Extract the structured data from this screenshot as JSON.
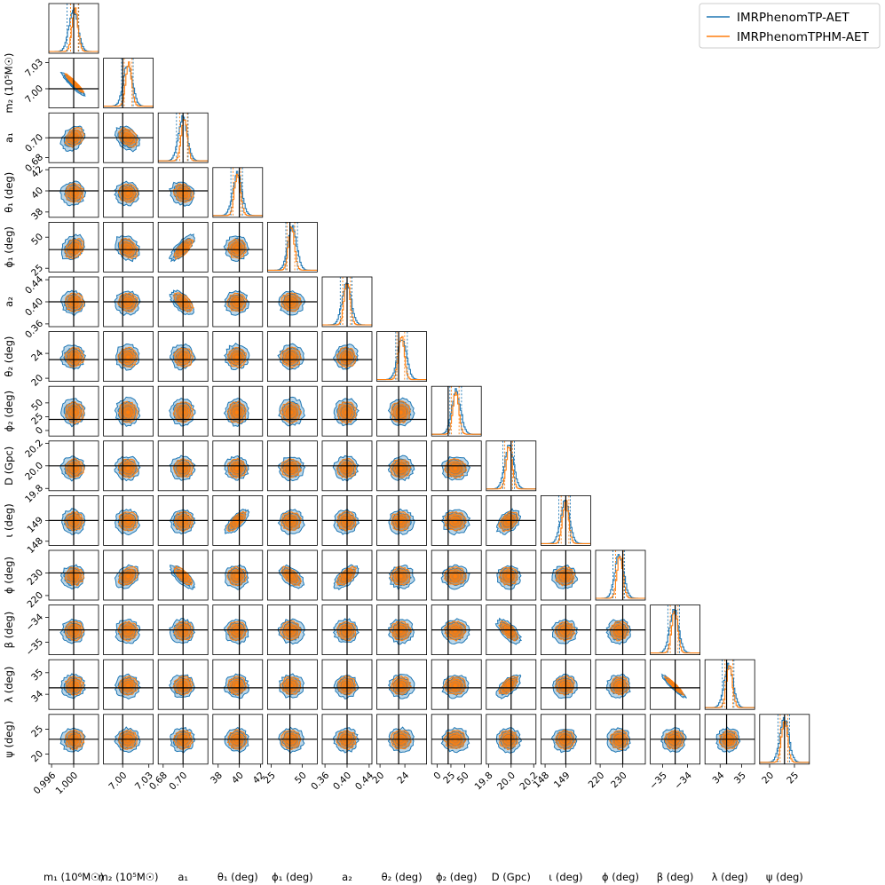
{
  "chart_data": {
    "type": "corner",
    "title": "",
    "legend": {
      "placement": "top-right"
    },
    "series": [
      {
        "name": "IMRPhenomTP-AET",
        "color": "#1f77b4"
      },
      {
        "name": "IMRPhenomTPHM-AET",
        "color": "#ff7f0e"
      }
    ],
    "truth_color": "#000000",
    "parameters": [
      {
        "label": "m₁ (10⁶M☉)",
        "truth": 1.0,
        "range": [
          0.9955,
          1.0045
        ],
        "ticks": [
          0.996,
          1.0
        ],
        "tick_labels": [
          "0.996",
          "1.000"
        ],
        "show_y_ticks": false,
        "qT": [
          -0.15,
          0.25
        ],
        "qH": [
          0.15,
          0.8
        ]
      },
      {
        "label": "m₂ (10⁵M☉)",
        "truth": 7.0,
        "range": [
          6.978,
          7.035
        ],
        "ticks": [
          7.0,
          7.03
        ],
        "tick_labels": [
          "7.00",
          "7.03"
        ],
        "show_y_ticks": true,
        "qT": [
          -0.2,
          0.35
        ],
        "qH": [
          -0.05,
          0.3
        ]
      },
      {
        "label": "a₁",
        "truth": 0.7,
        "range": [
          0.675,
          0.725
        ],
        "ticks": [
          0.68,
          0.7
        ],
        "tick_labels": [
          "0.68",
          "0.70"
        ],
        "show_y_ticks": true,
        "qT": [
          -0.15,
          0.35
        ],
        "qH": [
          0.1,
          0.6
        ]
      },
      {
        "label": "θ₁ (deg)",
        "truth": 40,
        "range": [
          37.5,
          42.2
        ],
        "ticks": [
          38,
          40,
          42
        ],
        "tick_labels": [
          "38",
          "40",
          "42"
        ],
        "show_y_ticks": true,
        "qT": [
          -0.2,
          0.25
        ],
        "qH": [
          -0.15,
          0.2
        ]
      },
      {
        "label": "ϕ₁ (deg)",
        "truth": 40,
        "range": [
          22,
          62
        ],
        "ticks": [
          25,
          50
        ],
        "tick_labels": [
          "25",
          "50"
        ],
        "show_y_ticks": true,
        "qT": [
          -0.15,
          0.55
        ],
        "qH": [
          -0.3,
          0.2
        ]
      },
      {
        "label": "a₂",
        "truth": 0.4,
        "range": [
          0.355,
          0.445
        ],
        "ticks": [
          0.36,
          0.4,
          0.44
        ],
        "tick_labels": [
          "0.36",
          "0.40",
          "0.44"
        ],
        "show_y_ticks": true,
        "qT": [
          -0.2,
          0.3
        ],
        "qH": [
          -0.1,
          0.55
        ]
      },
      {
        "label": "θ₂ (deg)",
        "truth": 23,
        "range": [
          19.5,
          27.5
        ],
        "ticks": [
          20,
          24
        ],
        "tick_labels": [
          "20",
          "24"
        ],
        "show_y_ticks": true,
        "qT": [
          -0.05,
          0.5
        ],
        "qH": [
          -0.2,
          0.35
        ]
      },
      {
        "label": "ϕ₂ (deg)",
        "truth": 20,
        "range": [
          -10,
          80
        ],
        "ticks": [
          0,
          25,
          50
        ],
        "tick_labels": [
          "0",
          "25",
          "50"
        ],
        "show_y_ticks": true,
        "qT": [
          -0.15,
          0.9
        ],
        "qH": [
          -0.25,
          0.75
        ]
      },
      {
        "label": "D (Gpc)",
        "truth": 20.0,
        "range": [
          19.78,
          20.22
        ],
        "ticks": [
          19.8,
          20.0,
          20.2
        ],
        "tick_labels": [
          "19.8",
          "20.0",
          "20.2"
        ],
        "show_y_ticks": true,
        "qT": [
          -0.5,
          0.3
        ],
        "qH": [
          -0.5,
          0.4
        ]
      },
      {
        "label": "ι (deg)",
        "truth": 149,
        "range": [
          147.8,
          150.2
        ],
        "ticks": [
          148,
          149
        ],
        "tick_labels": [
          "148",
          "149"
        ],
        "show_y_ticks": true,
        "qT": [
          -0.25,
          0.4
        ],
        "qH": [
          -0.15,
          0.15
        ]
      },
      {
        "label": "ϕ (deg)",
        "truth": 230,
        "range": [
          218,
          240
        ],
        "ticks": [
          220,
          230
        ],
        "tick_labels": [
          "220",
          "230"
        ],
        "show_y_ticks": true,
        "qT": [
          -0.35,
          0.2
        ],
        "qH": [
          -0.2,
          0.15
        ]
      },
      {
        "label": "β (deg)",
        "truth": -34.5,
        "range": [
          -35.5,
          -33.5
        ],
        "ticks": [
          -35,
          -34
        ],
        "tick_labels": [
          "−35",
          "−34"
        ],
        "show_y_ticks": true,
        "qT": [
          -0.3,
          0.35
        ],
        "qH": [
          -0.2,
          0.2
        ]
      },
      {
        "label": "λ (deg)",
        "truth": 34.3,
        "range": [
          33.3,
          35.6
        ],
        "ticks": [
          34,
          35
        ],
        "tick_labels": [
          "34",
          "35"
        ],
        "show_y_ticks": true,
        "qT": [
          -0.35,
          0.2
        ],
        "qH": [
          -0.2,
          0.3
        ]
      },
      {
        "label": "ψ (deg)",
        "truth": 23,
        "range": [
          18,
          28
        ],
        "ticks": [
          20,
          25
        ],
        "tick_labels": [
          "20",
          "25"
        ],
        "show_y_ticks": true,
        "qT": [
          -0.15,
          0.35
        ],
        "qH": [
          -0.1,
          0.5
        ]
      }
    ],
    "correlations": [
      [
        0,
        1,
        -0.95
      ],
      [
        1,
        2,
        -0.35
      ],
      [
        2,
        3,
        -0.2
      ],
      [
        2,
        4,
        0.75
      ],
      [
        2,
        5,
        -0.6
      ],
      [
        2,
        10,
        -0.75
      ],
      [
        3,
        9,
        0.75
      ],
      [
        4,
        10,
        -0.6
      ],
      [
        5,
        10,
        0.6
      ],
      [
        8,
        11,
        -0.65
      ],
      [
        8,
        12,
        0.65
      ],
      [
        8,
        9,
        0.4
      ],
      [
        11,
        12,
        -0.95
      ],
      [
        1,
        10,
        0.35
      ],
      [
        1,
        4,
        -0.3
      ],
      [
        0,
        2,
        0.3
      ],
      [
        0,
        4,
        0.3
      ]
    ]
  }
}
